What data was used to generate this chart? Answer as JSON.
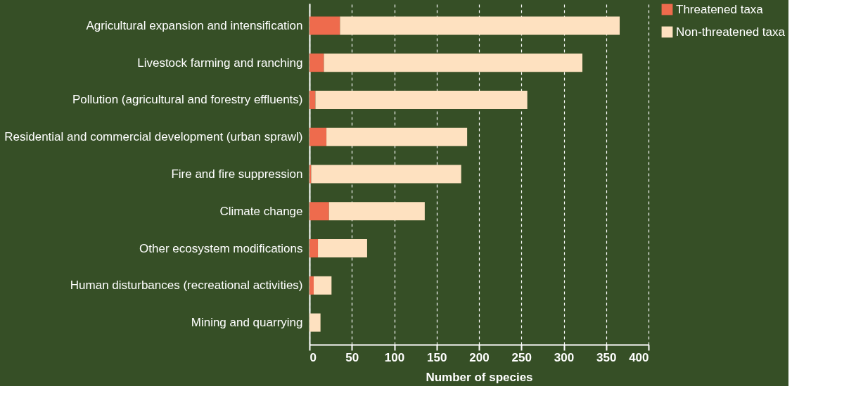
{
  "chart_data": {
    "type": "bar",
    "orientation": "horizontal",
    "stacked": true,
    "xlabel": "Number of species",
    "categories": [
      "Agricultural expansion and intensification",
      "Livestock farming and ranching",
      "Pollution (agricultural and forestry effluents)",
      "Residential and commercial development (urban sprawl)",
      "Fire and fire suppression",
      "Climate change",
      "Other ecosystem modifications",
      "Human disturbances (recreational activities)",
      "Mining and quarrying"
    ],
    "series": [
      {
        "name": "Threatened taxa",
        "color": "#ee6b4d",
        "values": [
          36,
          17,
          7,
          20,
          2,
          23,
          10,
          5,
          0
        ]
      },
      {
        "name": "Non-threatened taxa",
        "color": "#fee1c0",
        "values": [
          330,
          305,
          250,
          166,
          177,
          113,
          58,
          21,
          13
        ]
      }
    ],
    "xlim": [
      0,
      400
    ],
    "xticks": [
      0,
      50,
      100,
      150,
      200,
      250,
      300,
      350,
      400
    ],
    "grid": "x",
    "legend": "right"
  }
}
